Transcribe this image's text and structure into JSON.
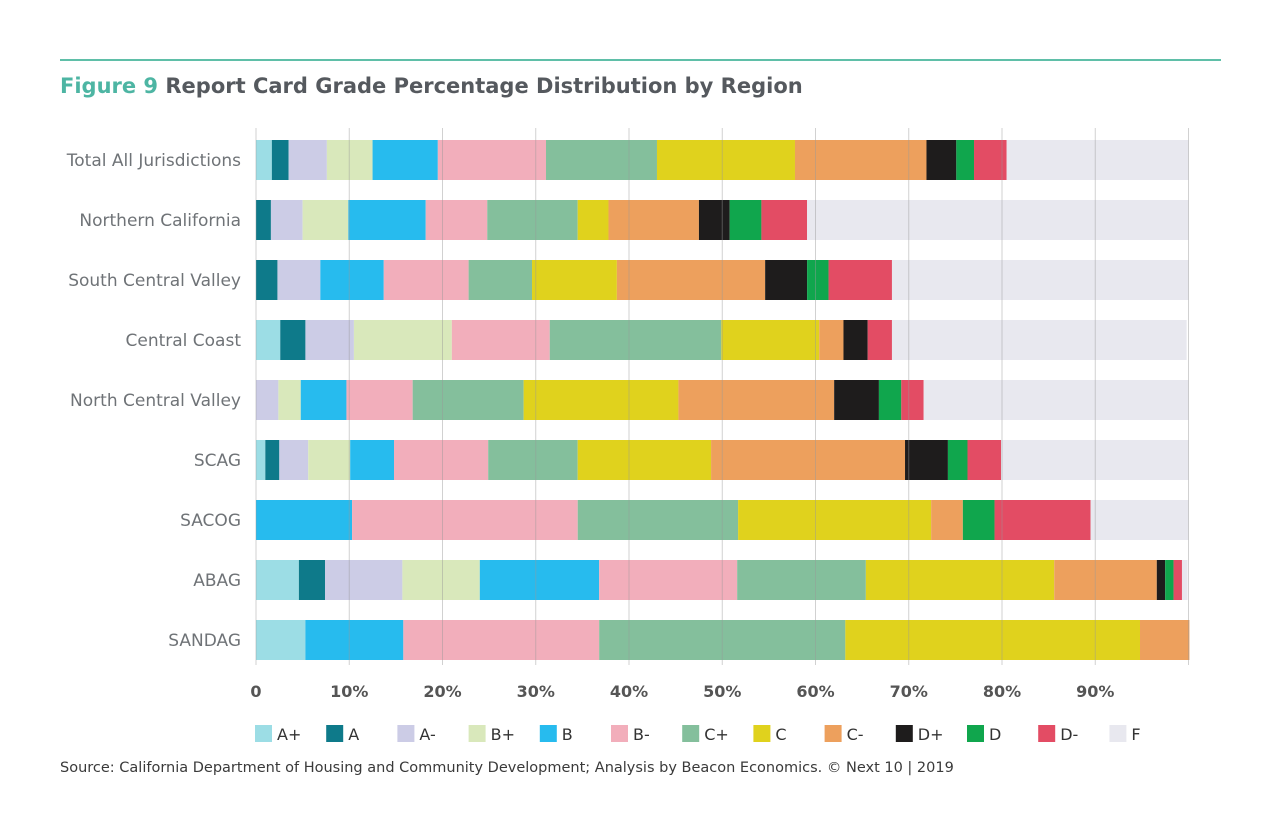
{
  "figure": {
    "label": "Figure 9",
    "title": "Report Card Grade Percentage Distribution by Region",
    "source": "Source: California Department of Housing and Community Development; Analysis by Beacon Economics. © Next 10 | 2019"
  },
  "chart_data": {
    "type": "bar",
    "orientation": "horizontal",
    "stacked": true,
    "title": "Report Card Grade Percentage Distribution by Region",
    "xlabel": "",
    "ylabel": "",
    "xlim": [
      0,
      100
    ],
    "grid": true,
    "legend_position": "bottom",
    "tick_labels": [
      "0",
      "10%",
      "20%",
      "30%",
      "40%",
      "50%",
      "60%",
      "70%",
      "80%",
      "90%"
    ],
    "tick_values": [
      0,
      10,
      20,
      30,
      40,
      50,
      60,
      70,
      80,
      90
    ],
    "categories": [
      "Total All Jurisdictions",
      "Northern California",
      "South Central Valley",
      "Central Coast",
      "North Central Valley",
      "SCAG",
      "SACOG",
      "ABAG",
      "SANDAG"
    ],
    "series": [
      {
        "name": "A+",
        "color": "#9cdde5",
        "values": [
          1.7,
          0,
          0,
          2.6,
          0,
          1.0,
          0,
          4.6,
          5.3
        ]
      },
      {
        "name": "A",
        "color": "#0e7a8a",
        "values": [
          1.8,
          1.6,
          2.3,
          2.7,
          0,
          1.5,
          0,
          2.8,
          0
        ]
      },
      {
        "name": "A-",
        "color": "#cccce6",
        "values": [
          4.1,
          3.4,
          4.6,
          5.2,
          2.4,
          3.1,
          0,
          8.3,
          0
        ]
      },
      {
        "name": "B+",
        "color": "#d9e8bb",
        "values": [
          4.9,
          4.9,
          0,
          10.5,
          2.4,
          4.5,
          0,
          8.3,
          0
        ]
      },
      {
        "name": "B",
        "color": "#27bbee",
        "values": [
          7.0,
          8.3,
          6.8,
          0,
          4.9,
          4.7,
          10.3,
          12.8,
          10.5
        ]
      },
      {
        "name": "B-",
        "color": "#f2aebb",
        "values": [
          11.6,
          6.6,
          9.1,
          10.5,
          7.1,
          10.1,
          24.2,
          14.8,
          21.0
        ]
      },
      {
        "name": "C+",
        "color": "#84bf9c",
        "values": [
          11.9,
          9.7,
          6.8,
          18.4,
          11.9,
          9.6,
          17.2,
          13.8,
          26.4
        ]
      },
      {
        "name": "C",
        "color": "#e0d21d",
        "values": [
          14.8,
          3.3,
          9.1,
          10.5,
          16.6,
          14.3,
          20.7,
          20.2,
          31.6
        ]
      },
      {
        "name": "C-",
        "color": "#eda05d",
        "values": [
          14.1,
          9.7,
          15.9,
          2.6,
          16.7,
          20.8,
          3.4,
          11.0,
          5.3
        ]
      },
      {
        "name": "D+",
        "color": "#1e1c1c",
        "values": [
          3.2,
          3.3,
          4.5,
          2.6,
          4.8,
          4.6,
          0,
          0.9,
          0
        ]
      },
      {
        "name": "D",
        "color": "#10a64d",
        "values": [
          1.9,
          3.4,
          2.3,
          0,
          2.4,
          2.1,
          3.4,
          0.9,
          0
        ]
      },
      {
        "name": "D-",
        "color": "#e34c64",
        "values": [
          3.5,
          4.9,
          6.8,
          2.6,
          2.4,
          3.6,
          10.3,
          0.9,
          0
        ]
      },
      {
        "name": "F",
        "color": "#e8e8ef",
        "values": [
          19.5,
          40.9,
          31.8,
          31.6,
          28.4,
          20.1,
          10.5,
          0.6,
          0
        ]
      }
    ]
  }
}
